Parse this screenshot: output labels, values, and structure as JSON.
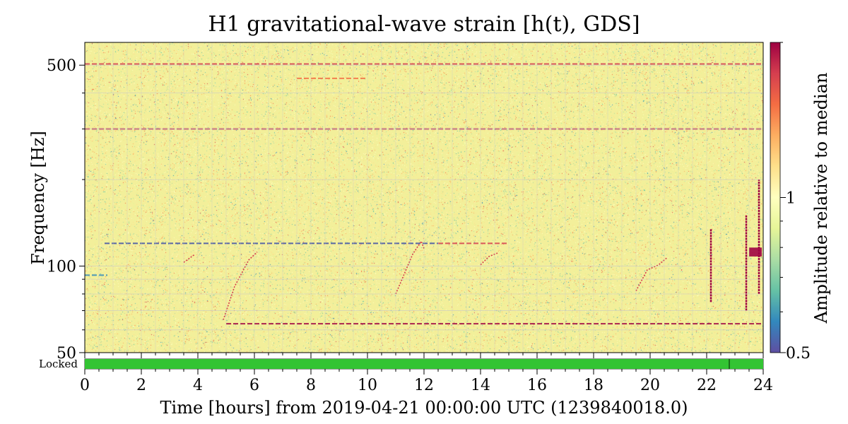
{
  "chart_data": {
    "type": "heatmap",
    "title": "H1 gravitational-wave strain [h(t), GDS]",
    "xlabel": "Time [hours] from 2019-04-21 00:00:00 UTC (1239840018.0)",
    "ylabel": "Frequency [Hz]",
    "xlim": [
      0,
      24
    ],
    "ylim": [
      50,
      600
    ],
    "yscale": "log",
    "x_ticks": [
      0,
      2,
      4,
      6,
      8,
      10,
      12,
      14,
      16,
      18,
      20,
      22,
      24
    ],
    "y_ticks": [
      50,
      100,
      500
    ],
    "grid": true,
    "colorbar": {
      "label": "Amplitude relative to median",
      "scale": "log",
      "range": [
        0.5,
        2
      ],
      "ticks": [
        0.5,
        1
      ],
      "colormap": "Spectral_r",
      "colors": [
        "#5e4fa2",
        "#3288bd",
        "#66c2a5",
        "#abdda4",
        "#e6f598",
        "#ffffbf",
        "#fee08b",
        "#fdae61",
        "#f46d43",
        "#d53e4f",
        "#9e0142"
      ]
    },
    "background_color": "#f3ef9a",
    "features": {
      "hlines": [
        {
          "freq": 505,
          "x": [
            0,
            24
          ],
          "color": "#d53e4f",
          "amp": 1.7
        },
        {
          "freq": 300,
          "x": [
            0,
            24
          ],
          "color": "#3f4fa8",
          "amp": 0.5
        },
        {
          "freq": 300,
          "x": [
            0,
            24
          ],
          "color": "#d53e4f",
          "amp": 1.8
        },
        {
          "freq": 450,
          "x": [
            7.5,
            10
          ],
          "color": "#f46d43",
          "amp": 1.3
        },
        {
          "freq": 120,
          "x": [
            0.7,
            12.5
          ],
          "color": "#3f4fa8",
          "amp": 0.6
        },
        {
          "freq": 120,
          "x": [
            12.5,
            15
          ],
          "color": "#d53e4f",
          "amp": 1.5
        },
        {
          "freq": 63,
          "x": [
            5,
            24
          ],
          "color": "#9e0142",
          "amp": 1.9
        },
        {
          "freq": 93,
          "x": [
            0,
            0.8
          ],
          "color": "#3288bd",
          "amp": 0.6
        }
      ],
      "curves": [
        {
          "points": [
            [
              4.9,
              65
            ],
            [
              5.3,
              85
            ],
            [
              5.8,
              105
            ],
            [
              6.1,
              112
            ]
          ]
        },
        {
          "points": [
            [
              11.0,
              80
            ],
            [
              11.6,
              110
            ],
            [
              11.9,
              122
            ],
            [
              12.0,
              115
            ]
          ]
        },
        {
          "points": [
            [
              14.0,
              101
            ],
            [
              14.3,
              108
            ],
            [
              14.6,
              111
            ]
          ]
        },
        {
          "points": [
            [
              19.5,
              82
            ],
            [
              19.9,
              97
            ],
            [
              20.3,
              101
            ],
            [
              20.6,
              107
            ]
          ]
        },
        {
          "points": [
            [
              3.5,
              103
            ],
            [
              3.9,
              110
            ]
          ]
        }
      ],
      "vlines": [
        {
          "x": 22.15,
          "f": [
            75,
            135
          ]
        },
        {
          "x": 23.4,
          "f": [
            70,
            150
          ]
        },
        {
          "x": 23.85,
          "f": [
            80,
            200
          ]
        }
      ],
      "blobs": [
        {
          "x": [
            23.5,
            23.95
          ],
          "f": [
            108,
            116
          ]
        }
      ]
    },
    "state_bar": {
      "label": "Locked",
      "color": "#33c433",
      "x": [
        0,
        24
      ],
      "gaps": [
        22.8
      ]
    }
  }
}
